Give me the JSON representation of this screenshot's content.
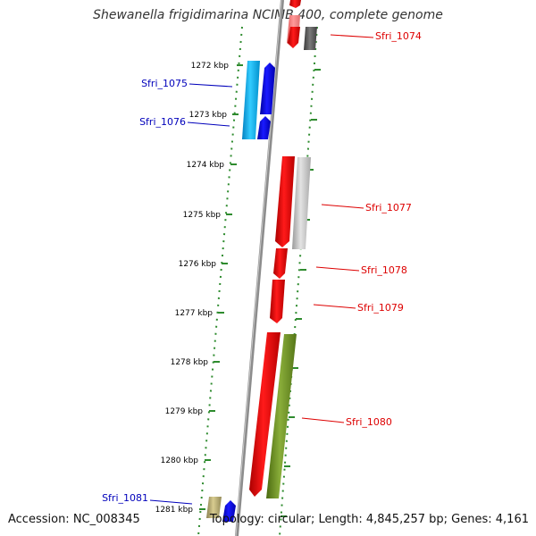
{
  "title": "Shewanella frigidimarina NCIMB 400, complete genome",
  "footer": {
    "accession": "Accession: NC_008345",
    "topology": "Topology: circular; Length: 4,845,257 bp; Genes: 4,161"
  },
  "colors": {
    "backbone": "#8c8c8c",
    "ticks": "#2e8b2e",
    "strand_plus_label": "#dd0000",
    "strand_minus_label": "#0000bb"
  },
  "scale": {
    "unit": "kbp",
    "tick_labels": [
      "1272 kbp",
      "1273 kbp",
      "1274 kbp",
      "1275 kbp",
      "1276 kbp",
      "1277 kbp",
      "1278 kbp",
      "1279 kbp",
      "1280 kbp",
      "1281 kbp"
    ]
  },
  "genes": [
    {
      "name": "Sfri_1074",
      "strand": "+",
      "label_color": "#dd0000"
    },
    {
      "name": "Sfri_1075",
      "strand": "-",
      "label_color": "#0000bb"
    },
    {
      "name": "Sfri_1076",
      "strand": "-",
      "label_color": "#0000bb"
    },
    {
      "name": "Sfri_1077",
      "strand": "+",
      "label_color": "#dd0000"
    },
    {
      "name": "Sfri_1078",
      "strand": "+",
      "label_color": "#dd0000"
    },
    {
      "name": "Sfri_1079",
      "strand": "+",
      "label_color": "#dd0000"
    },
    {
      "name": "Sfri_1080",
      "strand": "+",
      "label_color": "#dd0000"
    },
    {
      "name": "Sfri_1081",
      "strand": "-",
      "label_color": "#0000bb"
    }
  ]
}
